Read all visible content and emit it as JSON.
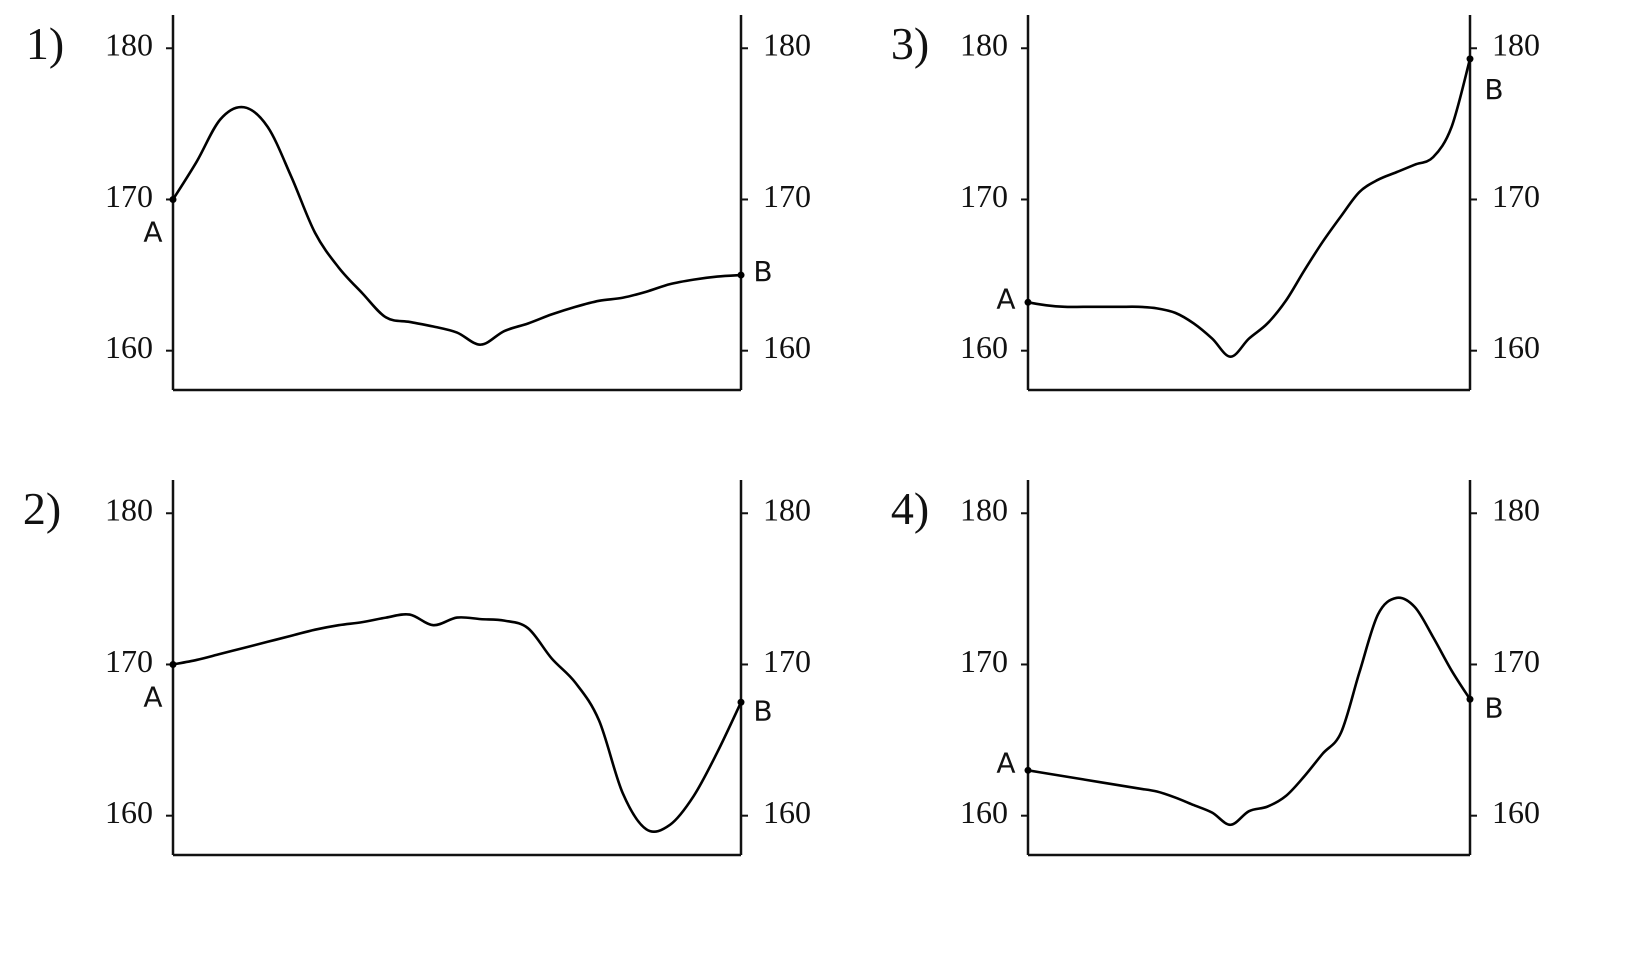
{
  "chart_data": [
    {
      "type": "line",
      "label": "1)",
      "categories": [
        null,
        null,
        null,
        null,
        null,
        null,
        null,
        null,
        null,
        null,
        null,
        null,
        null,
        null,
        null,
        null,
        null,
        null,
        null,
        null,
        null,
        null,
        null,
        null,
        null
      ],
      "values": [
        170,
        172.5,
        175.3,
        176.1,
        174.8,
        171.5,
        167.8,
        165.5,
        163.8,
        162.2,
        161.9,
        161.6,
        161.2,
        160.4,
        161.3,
        161.8,
        162.4,
        162.9,
        163.3,
        163.5,
        163.9,
        164.4,
        164.7,
        164.9,
        165
      ],
      "annotations": [
        "A",
        "B"
      ],
      "color": "#000000",
      "ylim": [
        157.4,
        182.2
      ],
      "yticks": [
        160,
        170,
        180
      ],
      "y2lim": [
        157.4,
        182.2
      ],
      "y2ticks": [
        160,
        170,
        180
      ]
    },
    {
      "type": "line",
      "label": "2)",
      "categories": [
        null,
        null,
        null,
        null,
        null,
        null,
        null,
        null,
        null,
        null,
        null,
        null,
        null,
        null,
        null,
        null,
        null,
        null,
        null,
        null,
        null,
        null,
        null,
        null,
        null
      ],
      "values": [
        170,
        170.3,
        170.7,
        171.1,
        171.5,
        171.9,
        172.3,
        172.6,
        172.8,
        173.1,
        173.3,
        172.6,
        173.1,
        173,
        172.9,
        172.4,
        170.4,
        168.8,
        166.3,
        161.5,
        159.1,
        159.4,
        161.3,
        164.2,
        167.5
      ],
      "annotations": [
        "A",
        "B"
      ],
      "color": "#000000",
      "ylim": [
        157.4,
        182.2
      ],
      "yticks": [
        160,
        170,
        180
      ],
      "y2lim": [
        157.4,
        182.2
      ],
      "y2ticks": [
        160,
        170,
        180
      ]
    },
    {
      "type": "line",
      "label": "3)",
      "categories": [
        null,
        null,
        null,
        null,
        null,
        null,
        null,
        null,
        null,
        null,
        null,
        null,
        null,
        null,
        null,
        null,
        null,
        null,
        null,
        null,
        null,
        null,
        null,
        null,
        null
      ],
      "values": [
        163.2,
        163,
        162.9,
        162.9,
        162.9,
        162.9,
        162.9,
        162.8,
        162.5,
        161.8,
        160.8,
        159.6,
        160.8,
        161.8,
        163.3,
        165.3,
        167.2,
        168.9,
        170.5,
        171.3,
        171.8,
        172.3,
        172.8,
        174.8,
        179.3
      ],
      "annotations": [
        "A",
        "B"
      ],
      "color": "#000000",
      "ylim": [
        157.4,
        182.2
      ],
      "yticks": [
        160,
        170,
        180
      ],
      "y2lim": [
        157.4,
        182.2
      ],
      "y2ticks": [
        160,
        170,
        180
      ]
    },
    {
      "type": "line",
      "label": "4)",
      "categories": [
        null,
        null,
        null,
        null,
        null,
        null,
        null,
        null,
        null,
        null,
        null,
        null,
        null,
        null,
        null,
        null,
        null,
        null,
        null,
        null,
        null,
        null,
        null,
        null,
        null
      ],
      "values": [
        163,
        162.8,
        162.6,
        162.4,
        162.2,
        162,
        161.8,
        161.6,
        161.2,
        160.7,
        160.2,
        159.4,
        160.3,
        160.6,
        161.3,
        162.6,
        164.1,
        165.5,
        169.5,
        173.3,
        174.4,
        173.8,
        171.8,
        169.6,
        167.7
      ],
      "annotations": [
        "A",
        "B"
      ],
      "color": "#000000",
      "ylim": [
        157.4,
        182.2
      ],
      "yticks": [
        160,
        170,
        180
      ],
      "y2lim": [
        157.4,
        182.2
      ],
      "y2ticks": [
        160,
        170,
        180
      ]
    }
  ]
}
